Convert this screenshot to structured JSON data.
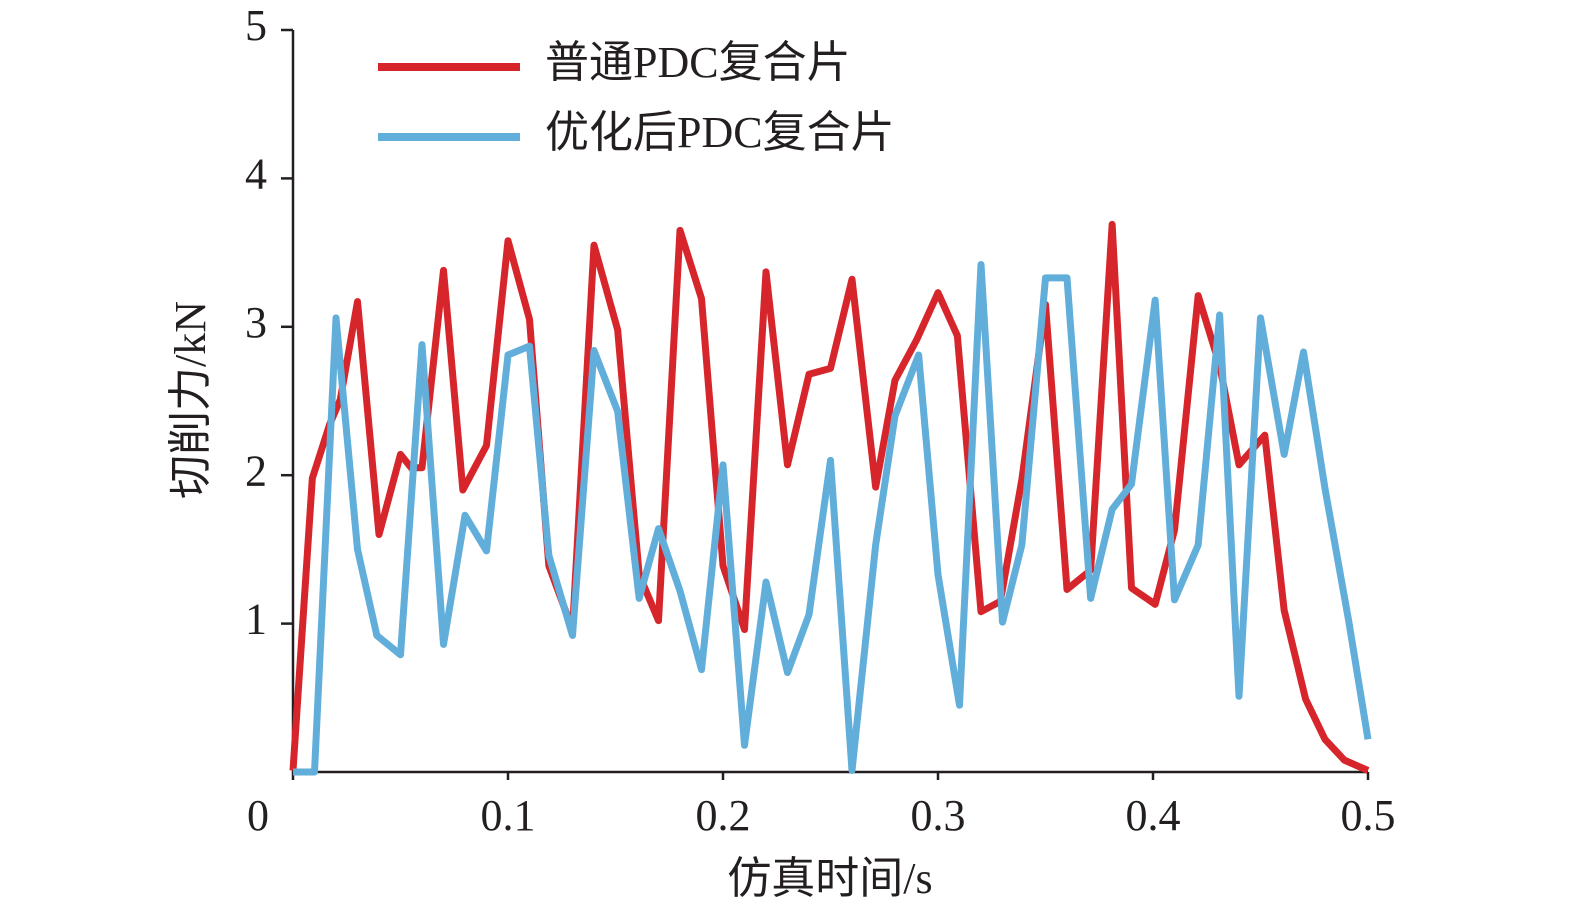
{
  "chart_data": {
    "type": "line",
    "x_label": "仿真时间/s",
    "y_label": "切削力/kN",
    "xlim": [
      0,
      0.5
    ],
    "xticks": [
      0,
      0.1,
      0.2,
      0.3,
      0.4,
      0.5
    ],
    "ylim": [
      0,
      5
    ],
    "yticks": [
      1,
      2,
      3,
      4,
      5
    ],
    "series": [
      {
        "name": "普通PDC复合片",
        "color": "#d7262b",
        "x": [
          0,
          0.009,
          0.017,
          0.022,
          0.03,
          0.04,
          0.05,
          0.055,
          0.06,
          0.07,
          0.079,
          0.09,
          0.1,
          0.11,
          0.119,
          0.13,
          0.14,
          0.151,
          0.161,
          0.17,
          0.18,
          0.19,
          0.2,
          0.21,
          0.22,
          0.23,
          0.24,
          0.25,
          0.26,
          0.271,
          0.28,
          0.29,
          0.3,
          0.309,
          0.32,
          0.329,
          0.339,
          0.35,
          0.36,
          0.371,
          0.381,
          0.39,
          0.401,
          0.41,
          0.421,
          0.431,
          0.44,
          0.452,
          0.461,
          0.471,
          0.48,
          0.489,
          0.5
        ],
        "values": [
          0.01,
          1.98,
          2.34,
          2.51,
          3.17,
          1.6,
          2.14,
          2.05,
          2.05,
          3.38,
          1.9,
          2.2,
          3.58,
          3.05,
          1.39,
          0.96,
          3.55,
          2.98,
          1.33,
          1.02,
          3.65,
          3.19,
          1.39,
          0.96,
          3.37,
          2.07,
          2.68,
          2.72,
          3.32,
          1.92,
          2.64,
          2.91,
          3.23,
          2.94,
          1.08,
          1.15,
          1.97,
          3.15,
          1.23,
          1.36,
          3.69,
          1.24,
          1.13,
          1.63,
          3.21,
          2.74,
          2.07,
          2.27,
          1.09,
          0.49,
          0.22,
          0.08,
          0.01
        ]
      },
      {
        "name": "优化后PDC复合片",
        "color": "#62aedb",
        "x": [
          0,
          0.01,
          0.02,
          0.03,
          0.039,
          0.05,
          0.06,
          0.07,
          0.08,
          0.09,
          0.1,
          0.11,
          0.119,
          0.13,
          0.14,
          0.151,
          0.161,
          0.17,
          0.18,
          0.19,
          0.2,
          0.21,
          0.22,
          0.23,
          0.24,
          0.25,
          0.26,
          0.271,
          0.28,
          0.291,
          0.3,
          0.31,
          0.32,
          0.33,
          0.339,
          0.35,
          0.36,
          0.371,
          0.381,
          0.39,
          0.401,
          0.41,
          0.421,
          0.431,
          0.44,
          0.45,
          0.461,
          0.47,
          0.48,
          0.491,
          0.5
        ],
        "values": [
          0,
          0,
          3.06,
          1.5,
          0.92,
          0.79,
          2.88,
          0.86,
          1.73,
          1.49,
          2.81,
          2.87,
          1.46,
          0.92,
          2.84,
          2.43,
          1.17,
          1.64,
          1.22,
          0.69,
          2.07,
          0.18,
          1.28,
          0.67,
          1.06,
          2.1,
          0.01,
          1.53,
          2.4,
          2.81,
          1.33,
          0.45,
          3.42,
          1.01,
          1.53,
          3.33,
          3.33,
          1.17,
          1.77,
          1.94,
          3.18,
          1.16,
          1.53,
          3.08,
          0.51,
          3.06,
          2.14,
          2.83,
          1.91,
          1.02,
          0.22
        ]
      }
    ]
  }
}
